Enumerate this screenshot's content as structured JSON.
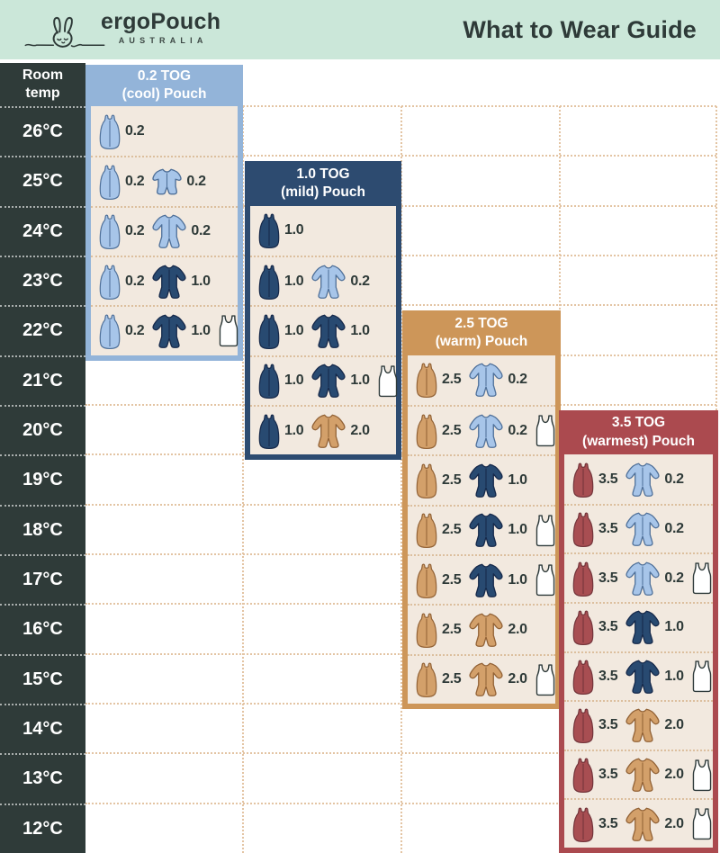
{
  "header": {
    "brand": "ergoPouch",
    "brand_sub": "AUSTRALIA",
    "title": "What to Wear Guide"
  },
  "temp_header": {
    "line1": "Room",
    "line2": "temp"
  },
  "temps": [
    "26°C",
    "25°C",
    "24°C",
    "23°C",
    "22°C",
    "21°C",
    "20°C",
    "19°C",
    "18°C",
    "17°C",
    "16°C",
    "15°C",
    "14°C",
    "13°C",
    "12°C"
  ],
  "colors": {
    "mint": "#cbe7d9",
    "charcoal": "#2f3b39",
    "ink": "#2e3a38",
    "grid": "#e3c4a3",
    "row_separator": "#dcbf9e",
    "panel_body": "#f2e9df",
    "icon": {
      "blue": {
        "fill": "#a7c5e9",
        "stroke": "#4f7099"
      },
      "navy": {
        "fill": "#284a71",
        "stroke": "#16294a"
      },
      "tan": {
        "fill": "#d3a06a",
        "stroke": "#926236"
      },
      "red": {
        "fill": "#a84e52",
        "stroke": "#73343a"
      },
      "white": {
        "fill": "#ffffff",
        "stroke": "#2e3a3a"
      }
    }
  },
  "columns": [
    {
      "id": "0-2-tog",
      "title": "0.2 TOG",
      "subtitle": "(cool) Pouch",
      "color": "#93b4d9",
      "rows": [
        {
          "temp": "26°C",
          "items": [
            {
              "icon": "bag",
              "color": "blue",
              "value": "0.2"
            }
          ]
        },
        {
          "temp": "25°C",
          "items": [
            {
              "icon": "bag",
              "color": "blue",
              "value": "0.2"
            },
            {
              "icon": "romper",
              "color": "blue",
              "value": "0.2"
            }
          ]
        },
        {
          "temp": "24°C",
          "items": [
            {
              "icon": "bag",
              "color": "blue",
              "value": "0.2"
            },
            {
              "icon": "suit",
              "color": "blue",
              "value": "0.2"
            }
          ]
        },
        {
          "temp": "23°C",
          "items": [
            {
              "icon": "bag",
              "color": "blue",
              "value": "0.2"
            },
            {
              "icon": "suit",
              "color": "navy",
              "value": "1.0"
            }
          ]
        },
        {
          "temp": "22°C",
          "items": [
            {
              "icon": "bag",
              "color": "blue",
              "value": "0.2"
            },
            {
              "icon": "suit",
              "color": "navy",
              "value": "1.0"
            },
            {
              "icon": "singlet",
              "color": "white"
            }
          ]
        }
      ]
    },
    {
      "id": "1-0-tog",
      "title": "1.0 TOG",
      "subtitle": "(mild) Pouch",
      "color": "#2d4b70",
      "rows": [
        {
          "temp": "24°C",
          "items": [
            {
              "icon": "bag",
              "color": "navy",
              "value": "1.0"
            }
          ]
        },
        {
          "temp": "23°C",
          "items": [
            {
              "icon": "bag",
              "color": "navy",
              "value": "1.0"
            },
            {
              "icon": "suit",
              "color": "blue",
              "value": "0.2"
            }
          ]
        },
        {
          "temp": "22°C",
          "items": [
            {
              "icon": "bag",
              "color": "navy",
              "value": "1.0"
            },
            {
              "icon": "suit",
              "color": "navy",
              "value": "1.0"
            }
          ]
        },
        {
          "temp": "21°C",
          "items": [
            {
              "icon": "bag",
              "color": "navy",
              "value": "1.0"
            },
            {
              "icon": "suit",
              "color": "navy",
              "value": "1.0"
            },
            {
              "icon": "singlet",
              "color": "white"
            }
          ]
        },
        {
          "temp": "20°C",
          "items": [
            {
              "icon": "bag",
              "color": "navy",
              "value": "1.0"
            },
            {
              "icon": "suit",
              "color": "tan",
              "value": "2.0"
            }
          ]
        }
      ]
    },
    {
      "id": "2-5-tog",
      "title": "2.5 TOG",
      "subtitle": "(warm) Pouch",
      "color": "#cd9659",
      "rows": [
        {
          "temp": "21°C",
          "items": [
            {
              "icon": "bag",
              "color": "tan",
              "value": "2.5"
            },
            {
              "icon": "suit",
              "color": "blue",
              "value": "0.2"
            }
          ]
        },
        {
          "temp": "20°C",
          "items": [
            {
              "icon": "bag",
              "color": "tan",
              "value": "2.5"
            },
            {
              "icon": "suit",
              "color": "blue",
              "value": "0.2"
            },
            {
              "icon": "singlet",
              "color": "white"
            }
          ]
        },
        {
          "temp": "19°C",
          "items": [
            {
              "icon": "bag",
              "color": "tan",
              "value": "2.5"
            },
            {
              "icon": "suit",
              "color": "navy",
              "value": "1.0"
            }
          ]
        },
        {
          "temp": "18°C",
          "items": [
            {
              "icon": "bag",
              "color": "tan",
              "value": "2.5"
            },
            {
              "icon": "suit",
              "color": "navy",
              "value": "1.0"
            },
            {
              "icon": "singlet",
              "color": "white"
            }
          ]
        },
        {
          "temp": "17°C",
          "items": [
            {
              "icon": "bag",
              "color": "tan",
              "value": "2.5"
            },
            {
              "icon": "suit",
              "color": "navy",
              "value": "1.0"
            },
            {
              "icon": "singlet",
              "color": "white"
            }
          ]
        },
        {
          "temp": "16°C",
          "items": [
            {
              "icon": "bag",
              "color": "tan",
              "value": "2.5"
            },
            {
              "icon": "suit",
              "color": "tan",
              "value": "2.0"
            }
          ]
        },
        {
          "temp": "15°C",
          "items": [
            {
              "icon": "bag",
              "color": "tan",
              "value": "2.5"
            },
            {
              "icon": "suit",
              "color": "tan",
              "value": "2.0"
            },
            {
              "icon": "singlet",
              "color": "white"
            }
          ]
        }
      ]
    },
    {
      "id": "3-5-tog",
      "title": "3.5 TOG",
      "subtitle": "(warmest) Pouch",
      "color": "#ab4a4f",
      "rows": [
        {
          "temp": "19°C",
          "items": [
            {
              "icon": "bag",
              "color": "red",
              "value": "3.5"
            },
            {
              "icon": "suit",
              "color": "blue",
              "value": "0.2"
            }
          ]
        },
        {
          "temp": "18°C",
          "items": [
            {
              "icon": "bag",
              "color": "red",
              "value": "3.5"
            },
            {
              "icon": "suit",
              "color": "blue",
              "value": "0.2"
            }
          ]
        },
        {
          "temp": "17°C",
          "items": [
            {
              "icon": "bag",
              "color": "red",
              "value": "3.5"
            },
            {
              "icon": "suit",
              "color": "blue",
              "value": "0.2"
            },
            {
              "icon": "singlet",
              "color": "white"
            }
          ]
        },
        {
          "temp": "16°C",
          "items": [
            {
              "icon": "bag",
              "color": "red",
              "value": "3.5"
            },
            {
              "icon": "suit",
              "color": "navy",
              "value": "1.0"
            }
          ]
        },
        {
          "temp": "15°C",
          "items": [
            {
              "icon": "bag",
              "color": "red",
              "value": "3.5"
            },
            {
              "icon": "suit",
              "color": "navy",
              "value": "1.0"
            },
            {
              "icon": "singlet",
              "color": "white"
            }
          ]
        },
        {
          "temp": "14°C",
          "items": [
            {
              "icon": "bag",
              "color": "red",
              "value": "3.5"
            },
            {
              "icon": "suit",
              "color": "tan",
              "value": "2.0"
            }
          ]
        },
        {
          "temp": "13°C",
          "items": [
            {
              "icon": "bag",
              "color": "red",
              "value": "3.5"
            },
            {
              "icon": "suit",
              "color": "tan",
              "value": "2.0"
            },
            {
              "icon": "singlet",
              "color": "white"
            }
          ]
        },
        {
          "temp": "12°C",
          "items": [
            {
              "icon": "bag",
              "color": "red",
              "value": "3.5"
            },
            {
              "icon": "suit",
              "color": "tan",
              "value": "2.0"
            },
            {
              "icon": "singlet",
              "color": "white"
            }
          ]
        }
      ]
    }
  ]
}
